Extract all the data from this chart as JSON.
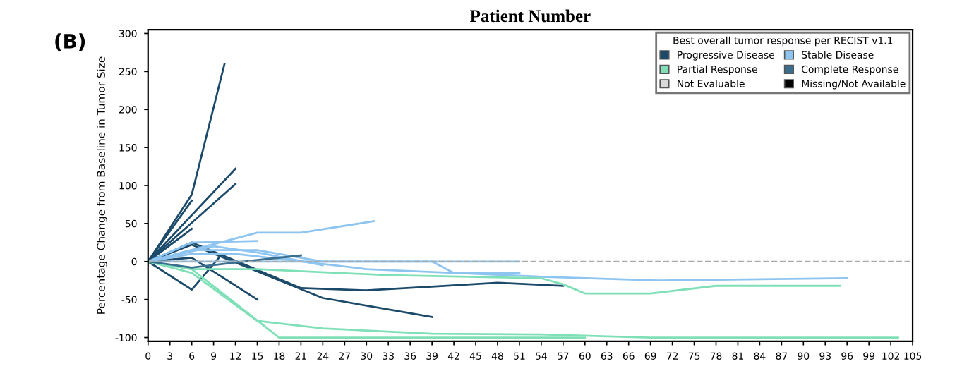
{
  "chart_data": {
    "type": "line",
    "title": "Patient Number",
    "ylabel": "Percentage Change from Baseline in Tumor Size",
    "legend_title": "Best overall tumor response per RECIST v1.1",
    "annotations": [
      "(B)"
    ],
    "xlim": [
      0,
      105
    ],
    "xticks": [
      0,
      3,
      6,
      9,
      12,
      15,
      18,
      21,
      24,
      27,
      30,
      33,
      36,
      39,
      42,
      45,
      48,
      51,
      54,
      57,
      60,
      63,
      66,
      69,
      72,
      75,
      78,
      81,
      84,
      87,
      90,
      93,
      96,
      99,
      102,
      105
    ],
    "ylim": [
      -105,
      305
    ],
    "yticks": [
      -100,
      -50,
      0,
      50,
      100,
      150,
      200,
      250,
      300
    ],
    "grid": false,
    "legend": "top right",
    "marker": "none",
    "line_style": "solid",
    "ref_lines": [
      {
        "axis": "y",
        "value": 0,
        "color": "#aaaaaa",
        "line_style": "dashed"
      }
    ],
    "series": [
      {
        "name": "Progressive Disease",
        "color": "#1b4a6b",
        "x": [
          0,
          6,
          10.5
        ],
        "values": [
          0,
          88,
          260
        ]
      },
      {
        "color": "#1b4a6b",
        "x": [
          0,
          6
        ],
        "values": [
          0,
          80
        ]
      },
      {
        "color": "#1b4a6b",
        "x": [
          0,
          12
        ],
        "values": [
          0,
          122
        ]
      },
      {
        "color": "#1b4a6b",
        "x": [
          0,
          12
        ],
        "values": [
          0,
          102
        ]
      },
      {
        "color": "#1b4a6b",
        "x": [
          0,
          6
        ],
        "values": [
          0,
          43
        ]
      },
      {
        "color": "#1b4a6b",
        "x": [
          0,
          6,
          10
        ],
        "values": [
          0,
          -37,
          8
        ]
      },
      {
        "color": "#1b4a6b",
        "x": [
          0,
          6,
          15
        ],
        "values": [
          0,
          5,
          -50
        ]
      },
      {
        "color": "#1b4a6b",
        "x": [
          0,
          6,
          21,
          30,
          39,
          48,
          57
        ],
        "values": [
          0,
          25,
          -35,
          -38,
          -33,
          -28,
          -32
        ]
      },
      {
        "color": "#1b4a6b",
        "x": [
          0,
          6,
          24,
          39
        ],
        "values": [
          0,
          22,
          -48,
          -73
        ]
      },
      {
        "name": "Stable Disease",
        "color": "#8ec5f0",
        "x": [
          0,
          6,
          15
        ],
        "values": [
          0,
          25,
          27
        ]
      },
      {
        "color": "#8ec5f0",
        "x": [
          0,
          15,
          21,
          31
        ],
        "values": [
          0,
          38,
          38,
          53
        ]
      },
      {
        "color": "#8ec5f0",
        "x": [
          0,
          6,
          15,
          24,
          39,
          42,
          51
        ],
        "values": [
          0,
          15,
          15,
          0,
          0,
          -15,
          -15
        ]
      },
      {
        "color": "#8ec5f0",
        "x": [
          0,
          6,
          12,
          30,
          54,
          70,
          96
        ],
        "values": [
          0,
          10,
          10,
          -10,
          -20,
          -25,
          -22
        ]
      },
      {
        "color": "#8ec5f0",
        "x": [
          0,
          51
        ],
        "values": [
          0,
          0
        ]
      },
      {
        "color": "#8ec5f0",
        "x": [
          0,
          9,
          15,
          24
        ],
        "values": [
          0,
          20,
          12,
          -5
        ]
      },
      {
        "name": "Partial Response",
        "color": "#7fe0b8",
        "x": [
          0,
          6,
          15,
          33,
          54,
          57,
          60,
          69,
          78,
          95
        ],
        "values": [
          0,
          -10,
          -10,
          -18,
          -22,
          -30,
          -42,
          -42,
          -32,
          -32
        ]
      },
      {
        "color": "#7fe0b8",
        "x": [
          0,
          6,
          15,
          24,
          39,
          54,
          69,
          103
        ],
        "values": [
          0,
          -15,
          -78,
          -88,
          -95,
          -96,
          -100,
          -100
        ]
      },
      {
        "color": "#7fe0b8",
        "x": [
          0,
          6,
          18,
          60
        ],
        "values": [
          0,
          -10,
          -100,
          -100
        ]
      },
      {
        "name": "Complete Response",
        "color": "#3a6e8f",
        "x": [
          0,
          6,
          15,
          21
        ],
        "values": [
          0,
          -8,
          2,
          8
        ]
      },
      {
        "name": "Not Evaluable",
        "color": "#d9d9d9"
      },
      {
        "name": "Missing/Not Available",
        "color": "#000000"
      }
    ]
  }
}
